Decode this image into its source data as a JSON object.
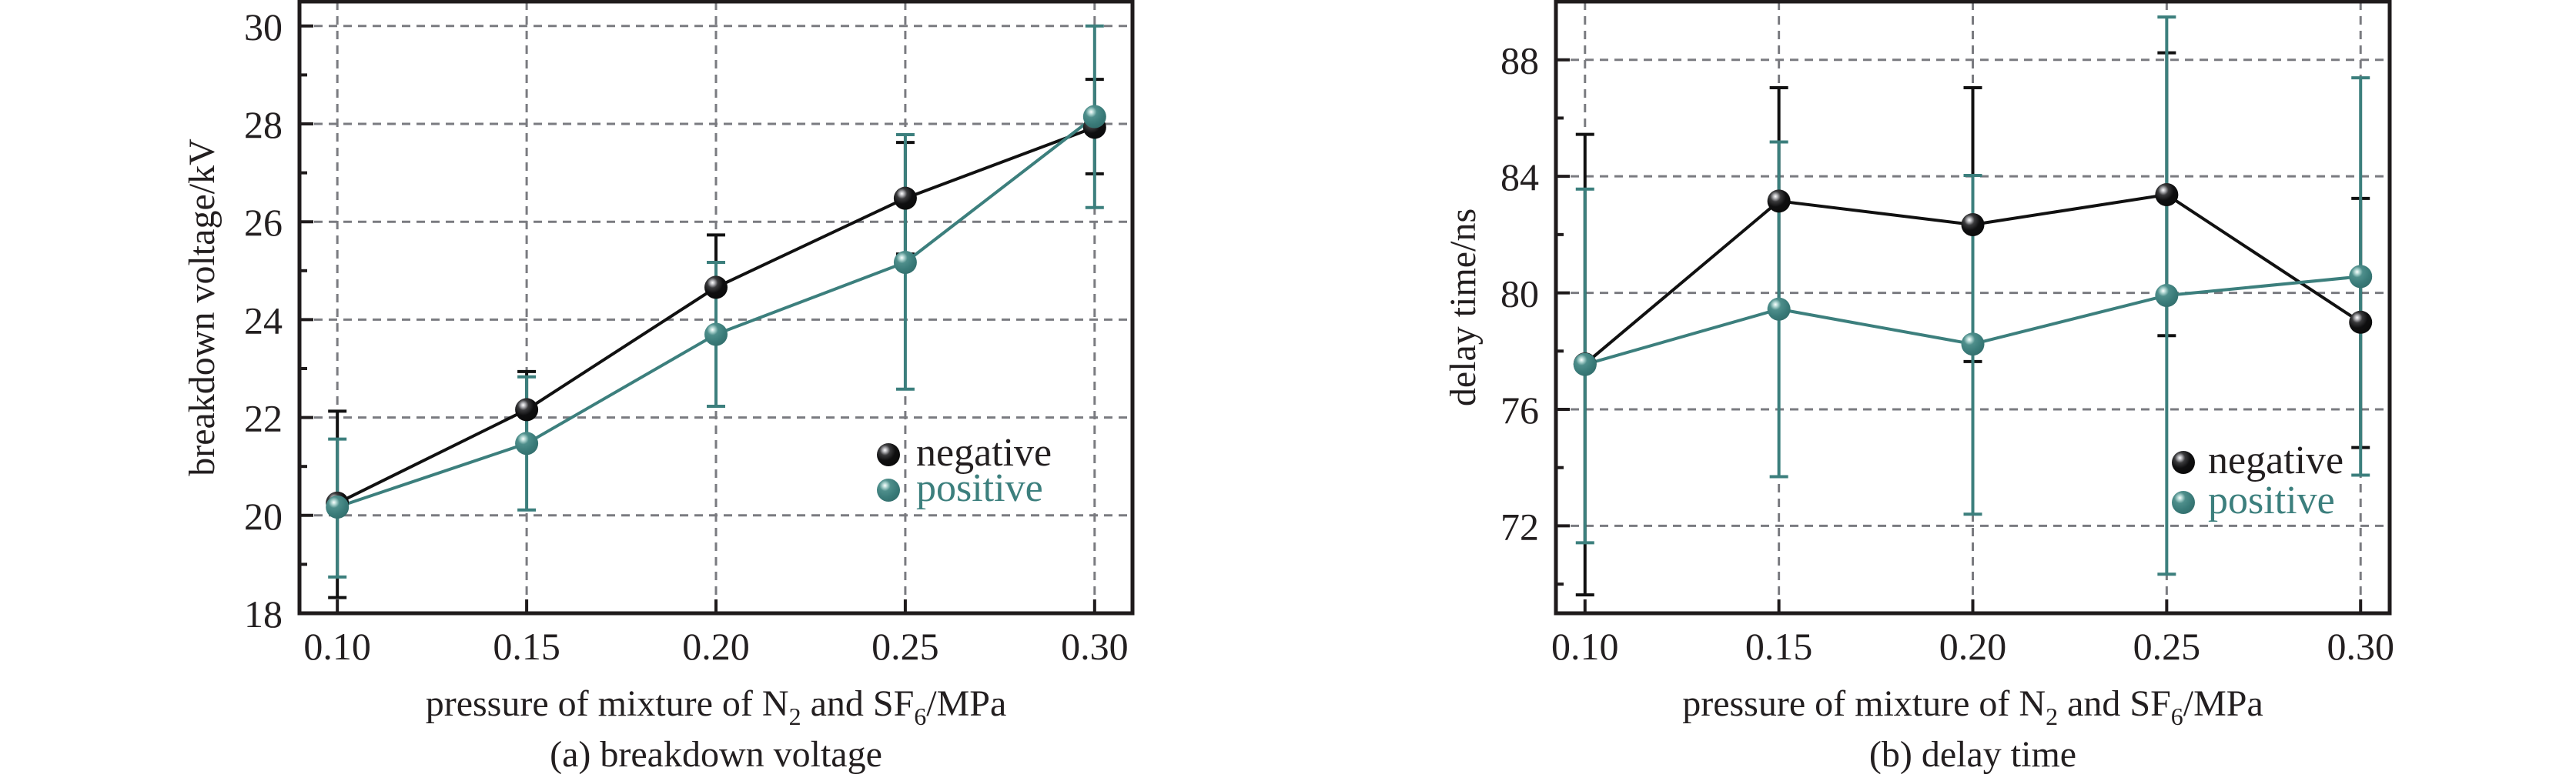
{
  "chart_data": [
    {
      "type": "line",
      "panel": "a",
      "caption": "(a) breakdown voltage",
      "title": "",
      "xlabel_parts": {
        "pre": "pressure of mixture of N",
        "sub1": "2",
        "mid": " and SF",
        "sub2": "6",
        "post": "/MPa"
      },
      "xlabel": "pressure of mixture of N2 and SF6/MPa",
      "ylabel": "breakdown voltage/kV",
      "xlim": [
        0.09,
        0.31
      ],
      "ylim": [
        18,
        30.5
      ],
      "x": [
        0.1,
        0.15,
        0.2,
        0.25,
        0.3
      ],
      "xtick_labels": [
        "0.10",
        "0.15",
        "0.20",
        "0.25",
        "0.30"
      ],
      "yticks": [
        18,
        20,
        22,
        24,
        26,
        28,
        30
      ],
      "ytick_labels": [
        "18",
        "20",
        "22",
        "24",
        "26",
        "28",
        "30"
      ],
      "yminor_ticks": [
        19,
        21,
        23,
        25,
        27,
        29
      ],
      "grid": true,
      "legend_position": "lower-right",
      "series": [
        {
          "name": "negative",
          "color": "#111111",
          "values": [
            20.25,
            22.16,
            24.66,
            26.48,
            27.93
          ],
          "err_upper": [
            22.13,
            22.94,
            25.73,
            27.62,
            28.91
          ],
          "err_lower": [
            18.32,
            21.38,
            23.59,
            25.34,
            26.98
          ]
        },
        {
          "name": "positive",
          "color": "#3c7f7d",
          "values": [
            20.17,
            21.47,
            23.7,
            25.17,
            28.15
          ],
          "err_upper": [
            21.56,
            22.83,
            25.17,
            27.78,
            30.0
          ],
          "err_lower": [
            18.74,
            20.11,
            22.23,
            22.58,
            26.29
          ]
        }
      ]
    },
    {
      "type": "line",
      "panel": "b",
      "caption": "(b) delay time",
      "title": "",
      "xlabel_parts": {
        "pre": "pressure of mixture of N",
        "sub1": "2",
        "mid": " and SF",
        "sub2": "6",
        "post": "/MPa"
      },
      "xlabel": "pressure of mixture of N2 and SF6/MPa",
      "ylabel": "delay time/ns",
      "xlim": [
        0.0925,
        0.3075
      ],
      "ylim": [
        69,
        90
      ],
      "x": [
        0.1,
        0.15,
        0.2,
        0.25,
        0.3
      ],
      "xtick_labels": [
        "0.10",
        "0.15",
        "0.20",
        "0.25",
        "0.30"
      ],
      "yticks": [
        72,
        76,
        80,
        84,
        88
      ],
      "ytick_labels": [
        "72",
        "76",
        "80",
        "84",
        "88"
      ],
      "yminor_ticks": [
        70,
        74,
        78,
        82,
        86
      ],
      "grid": true,
      "legend_position": "lower-right",
      "series": [
        {
          "name": "negative",
          "color": "#111111",
          "values": [
            77.56,
            83.15,
            82.34,
            83.37,
            78.99
          ],
          "err_upper": [
            85.44,
            87.04,
            87.04,
            88.24,
            83.24
          ],
          "err_lower": [
            69.63,
            79.26,
            77.64,
            78.53,
            74.69
          ]
        },
        {
          "name": "positive",
          "color": "#3c7f7d",
          "values": [
            77.54,
            79.44,
            78.24,
            79.91,
            80.56
          ],
          "err_upper": [
            83.56,
            85.18,
            84.03,
            89.47,
            87.38
          ],
          "err_lower": [
            71.42,
            73.69,
            72.4,
            70.34,
            73.74
          ]
        }
      ]
    }
  ]
}
